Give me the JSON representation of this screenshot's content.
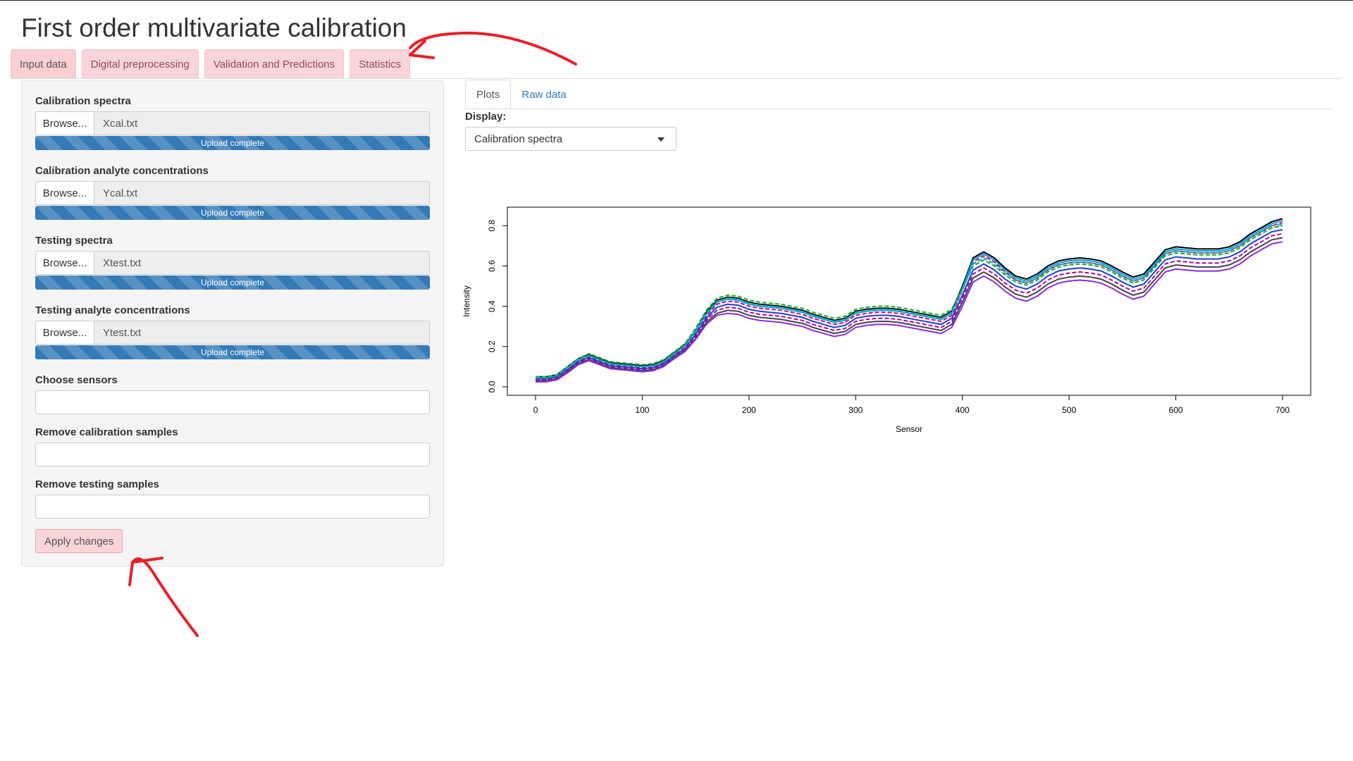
{
  "app": {
    "title": "First order multivariate calibration"
  },
  "main_tabs": [
    {
      "label": "Input data",
      "active": true
    },
    {
      "label": "Digital preprocessing",
      "active": false
    },
    {
      "label": "Validation and Predictions",
      "active": false
    },
    {
      "label": "Statistics",
      "active": false
    }
  ],
  "sidebar": {
    "file_inputs": [
      {
        "label": "Calibration spectra",
        "button": "Browse...",
        "filename": "Xcal.txt",
        "status": "Upload complete",
        "progress": 1.0
      },
      {
        "label": "Calibration analyte concentrations",
        "button": "Browse...",
        "filename": "Ycal.txt",
        "status": "Upload complete",
        "progress": 1.0
      },
      {
        "label": "Testing spectra",
        "button": "Browse...",
        "filename": "Xtest.txt",
        "status": "Upload complete",
        "progress": 1.0
      },
      {
        "label": "Testing analyte concentrations",
        "button": "Browse...",
        "filename": "Ytest.txt",
        "status": "Upload complete",
        "progress": 1.0
      }
    ],
    "text_inputs": [
      {
        "label": "Choose sensors",
        "value": ""
      },
      {
        "label": "Remove calibration samples",
        "value": ""
      },
      {
        "label": "Remove testing samples",
        "value": ""
      }
    ],
    "apply_label": "Apply changes"
  },
  "right_panel": {
    "tabs": [
      {
        "label": "Plots",
        "active": true
      },
      {
        "label": "Raw data",
        "active": false
      }
    ],
    "display_label": "Display:",
    "display_selected": "Calibration spectra"
  },
  "colors": {
    "accent_pink": "#f9d5d9",
    "progress_blue": "#337ab7",
    "link_blue": "#337ab7",
    "annotation_red": "#e8202a"
  },
  "chart_data": {
    "type": "line",
    "xlabel": "Sensor",
    "ylabel": "Intensity",
    "xlim": [
      0,
      700
    ],
    "ylim": [
      0,
      0.85
    ],
    "xticks": [
      0,
      100,
      200,
      300,
      400,
      500,
      600,
      700
    ],
    "yticks": [
      0.0,
      0.2,
      0.4,
      0.6,
      0.8
    ],
    "ytick_labels": [
      "0.0",
      "0.2",
      "0.4",
      "0.6",
      "0.8"
    ],
    "grid": false,
    "x": [
      0,
      10,
      20,
      30,
      40,
      50,
      60,
      70,
      80,
      90,
      100,
      110,
      120,
      130,
      140,
      150,
      160,
      170,
      180,
      190,
      200,
      210,
      220,
      230,
      240,
      250,
      260,
      270,
      280,
      290,
      300,
      310,
      320,
      330,
      340,
      350,
      360,
      370,
      380,
      390,
      400,
      410,
      420,
      430,
      440,
      450,
      460,
      470,
      480,
      490,
      500,
      510,
      520,
      530,
      540,
      550,
      560,
      570,
      580,
      590,
      600,
      610,
      620,
      630,
      640,
      650,
      660,
      670,
      680,
      690,
      700
    ],
    "series": [
      {
        "color": "#000000",
        "values": [
          0.05,
          0.05,
          0.06,
          0.1,
          0.14,
          0.16,
          0.14,
          0.12,
          0.115,
          0.11,
          0.105,
          0.11,
          0.13,
          0.17,
          0.21,
          0.28,
          0.37,
          0.43,
          0.445,
          0.44,
          0.42,
          0.41,
          0.405,
          0.4,
          0.39,
          0.38,
          0.36,
          0.345,
          0.33,
          0.34,
          0.375,
          0.385,
          0.39,
          0.39,
          0.385,
          0.375,
          0.365,
          0.355,
          0.345,
          0.375,
          0.5,
          0.64,
          0.67,
          0.64,
          0.59,
          0.55,
          0.535,
          0.56,
          0.6,
          0.625,
          0.635,
          0.64,
          0.635,
          0.625,
          0.6,
          0.57,
          0.545,
          0.56,
          0.62,
          0.68,
          0.695,
          0.69,
          0.685,
          0.685,
          0.685,
          0.695,
          0.72,
          0.76,
          0.79,
          0.82,
          0.835
        ]
      },
      {
        "color": "#e6007e",
        "values": [
          0.04,
          0.04,
          0.05,
          0.09,
          0.13,
          0.15,
          0.13,
          0.11,
          0.105,
          0.1,
          0.095,
          0.1,
          0.12,
          0.16,
          0.2,
          0.27,
          0.35,
          0.41,
          0.425,
          0.42,
          0.4,
          0.39,
          0.385,
          0.38,
          0.37,
          0.36,
          0.34,
          0.325,
          0.31,
          0.32,
          0.355,
          0.365,
          0.37,
          0.37,
          0.365,
          0.355,
          0.345,
          0.335,
          0.325,
          0.355,
          0.48,
          0.62,
          0.65,
          0.62,
          0.57,
          0.53,
          0.515,
          0.54,
          0.58,
          0.605,
          0.615,
          0.62,
          0.615,
          0.605,
          0.58,
          0.55,
          0.525,
          0.54,
          0.6,
          0.66,
          0.675,
          0.67,
          0.665,
          0.665,
          0.665,
          0.675,
          0.7,
          0.74,
          0.77,
          0.8,
          0.815
        ]
      },
      {
        "color": "#00a0e0",
        "values": [
          0.045,
          0.045,
          0.055,
          0.095,
          0.135,
          0.155,
          0.135,
          0.115,
          0.11,
          0.105,
          0.1,
          0.105,
          0.125,
          0.165,
          0.205,
          0.275,
          0.36,
          0.42,
          0.435,
          0.43,
          0.41,
          0.4,
          0.395,
          0.39,
          0.38,
          0.37,
          0.35,
          0.335,
          0.32,
          0.33,
          0.365,
          0.375,
          0.38,
          0.38,
          0.375,
          0.365,
          0.355,
          0.345,
          0.335,
          0.365,
          0.49,
          0.63,
          0.66,
          0.63,
          0.58,
          0.54,
          0.525,
          0.55,
          0.59,
          0.615,
          0.625,
          0.63,
          0.625,
          0.615,
          0.59,
          0.56,
          0.535,
          0.55,
          0.61,
          0.67,
          0.685,
          0.68,
          0.675,
          0.675,
          0.675,
          0.685,
          0.71,
          0.75,
          0.78,
          0.81,
          0.825
        ]
      },
      {
        "color": "#22aa22",
        "values": [
          0.05,
          0.05,
          0.06,
          0.1,
          0.14,
          0.165,
          0.145,
          0.125,
          0.12,
          0.115,
          0.11,
          0.115,
          0.135,
          0.175,
          0.215,
          0.29,
          0.38,
          0.44,
          0.455,
          0.45,
          0.43,
          0.42,
          0.415,
          0.41,
          0.4,
          0.39,
          0.37,
          0.355,
          0.34,
          0.35,
          0.385,
          0.395,
          0.4,
          0.4,
          0.395,
          0.385,
          0.375,
          0.365,
          0.355,
          0.385,
          0.49,
          0.6,
          0.63,
          0.6,
          0.555,
          0.52,
          0.505,
          0.53,
          0.57,
          0.595,
          0.605,
          0.61,
          0.605,
          0.595,
          0.57,
          0.54,
          0.515,
          0.53,
          0.59,
          0.65,
          0.665,
          0.66,
          0.655,
          0.655,
          0.655,
          0.665,
          0.69,
          0.73,
          0.76,
          0.79,
          0.8
        ]
      },
      {
        "color": "#1c3fd6",
        "values": [
          0.04,
          0.04,
          0.05,
          0.085,
          0.125,
          0.145,
          0.125,
          0.105,
          0.1,
          0.095,
          0.09,
          0.095,
          0.115,
          0.155,
          0.19,
          0.26,
          0.34,
          0.395,
          0.41,
          0.405,
          0.385,
          0.375,
          0.37,
          0.365,
          0.355,
          0.345,
          0.325,
          0.31,
          0.295,
          0.305,
          0.34,
          0.35,
          0.355,
          0.355,
          0.35,
          0.34,
          0.33,
          0.32,
          0.31,
          0.34,
          0.455,
          0.58,
          0.61,
          0.58,
          0.535,
          0.5,
          0.485,
          0.51,
          0.55,
          0.575,
          0.585,
          0.59,
          0.585,
          0.575,
          0.55,
          0.52,
          0.495,
          0.51,
          0.57,
          0.63,
          0.645,
          0.64,
          0.635,
          0.635,
          0.635,
          0.645,
          0.67,
          0.71,
          0.74,
          0.77,
          0.78
        ]
      },
      {
        "color": "#b000b0",
        "values": [
          0.035,
          0.035,
          0.045,
          0.08,
          0.12,
          0.14,
          0.12,
          0.1,
          0.095,
          0.09,
          0.085,
          0.09,
          0.11,
          0.15,
          0.185,
          0.25,
          0.33,
          0.38,
          0.395,
          0.39,
          0.37,
          0.36,
          0.355,
          0.35,
          0.34,
          0.33,
          0.31,
          0.295,
          0.28,
          0.29,
          0.325,
          0.335,
          0.34,
          0.34,
          0.335,
          0.325,
          0.315,
          0.305,
          0.295,
          0.325,
          0.44,
          0.56,
          0.59,
          0.56,
          0.515,
          0.48,
          0.465,
          0.49,
          0.53,
          0.555,
          0.565,
          0.57,
          0.565,
          0.555,
          0.53,
          0.5,
          0.475,
          0.49,
          0.55,
          0.61,
          0.625,
          0.62,
          0.615,
          0.615,
          0.615,
          0.625,
          0.65,
          0.69,
          0.72,
          0.75,
          0.76
        ]
      },
      {
        "color": "#444444",
        "values": [
          0.03,
          0.03,
          0.04,
          0.075,
          0.115,
          0.135,
          0.115,
          0.095,
          0.09,
          0.085,
          0.08,
          0.085,
          0.105,
          0.145,
          0.18,
          0.24,
          0.32,
          0.365,
          0.38,
          0.375,
          0.355,
          0.345,
          0.34,
          0.335,
          0.325,
          0.315,
          0.295,
          0.28,
          0.265,
          0.275,
          0.31,
          0.32,
          0.325,
          0.325,
          0.32,
          0.31,
          0.3,
          0.29,
          0.28,
          0.31,
          0.42,
          0.54,
          0.57,
          0.54,
          0.495,
          0.46,
          0.445,
          0.47,
          0.51,
          0.535,
          0.545,
          0.55,
          0.545,
          0.535,
          0.51,
          0.48,
          0.455,
          0.47,
          0.53,
          0.59,
          0.605,
          0.6,
          0.595,
          0.595,
          0.595,
          0.605,
          0.63,
          0.67,
          0.7,
          0.73,
          0.74
        ]
      },
      {
        "color": "#00b4b4",
        "values": [
          0.045,
          0.045,
          0.055,
          0.095,
          0.135,
          0.155,
          0.135,
          0.115,
          0.11,
          0.105,
          0.1,
          0.105,
          0.125,
          0.165,
          0.205,
          0.28,
          0.365,
          0.425,
          0.44,
          0.435,
          0.415,
          0.405,
          0.4,
          0.395,
          0.385,
          0.375,
          0.355,
          0.34,
          0.325,
          0.335,
          0.37,
          0.38,
          0.385,
          0.385,
          0.38,
          0.37,
          0.36,
          0.35,
          0.34,
          0.37,
          0.48,
          0.61,
          0.64,
          0.61,
          0.565,
          0.53,
          0.515,
          0.54,
          0.58,
          0.605,
          0.615,
          0.62,
          0.615,
          0.605,
          0.58,
          0.55,
          0.525,
          0.54,
          0.6,
          0.66,
          0.675,
          0.67,
          0.665,
          0.665,
          0.665,
          0.675,
          0.7,
          0.74,
          0.77,
          0.8,
          0.805
        ]
      },
      {
        "color": "#8a2be2",
        "values": [
          0.025,
          0.025,
          0.035,
          0.07,
          0.11,
          0.13,
          0.11,
          0.09,
          0.085,
          0.08,
          0.075,
          0.08,
          0.1,
          0.14,
          0.175,
          0.235,
          0.31,
          0.355,
          0.365,
          0.36,
          0.34,
          0.33,
          0.325,
          0.32,
          0.31,
          0.3,
          0.28,
          0.265,
          0.25,
          0.26,
          0.295,
          0.305,
          0.31,
          0.31,
          0.305,
          0.295,
          0.285,
          0.275,
          0.265,
          0.295,
          0.4,
          0.52,
          0.55,
          0.52,
          0.475,
          0.44,
          0.425,
          0.45,
          0.49,
          0.515,
          0.525,
          0.53,
          0.525,
          0.515,
          0.49,
          0.46,
          0.435,
          0.45,
          0.51,
          0.57,
          0.585,
          0.58,
          0.575,
          0.575,
          0.575,
          0.585,
          0.61,
          0.65,
          0.68,
          0.71,
          0.72
        ]
      }
    ]
  }
}
